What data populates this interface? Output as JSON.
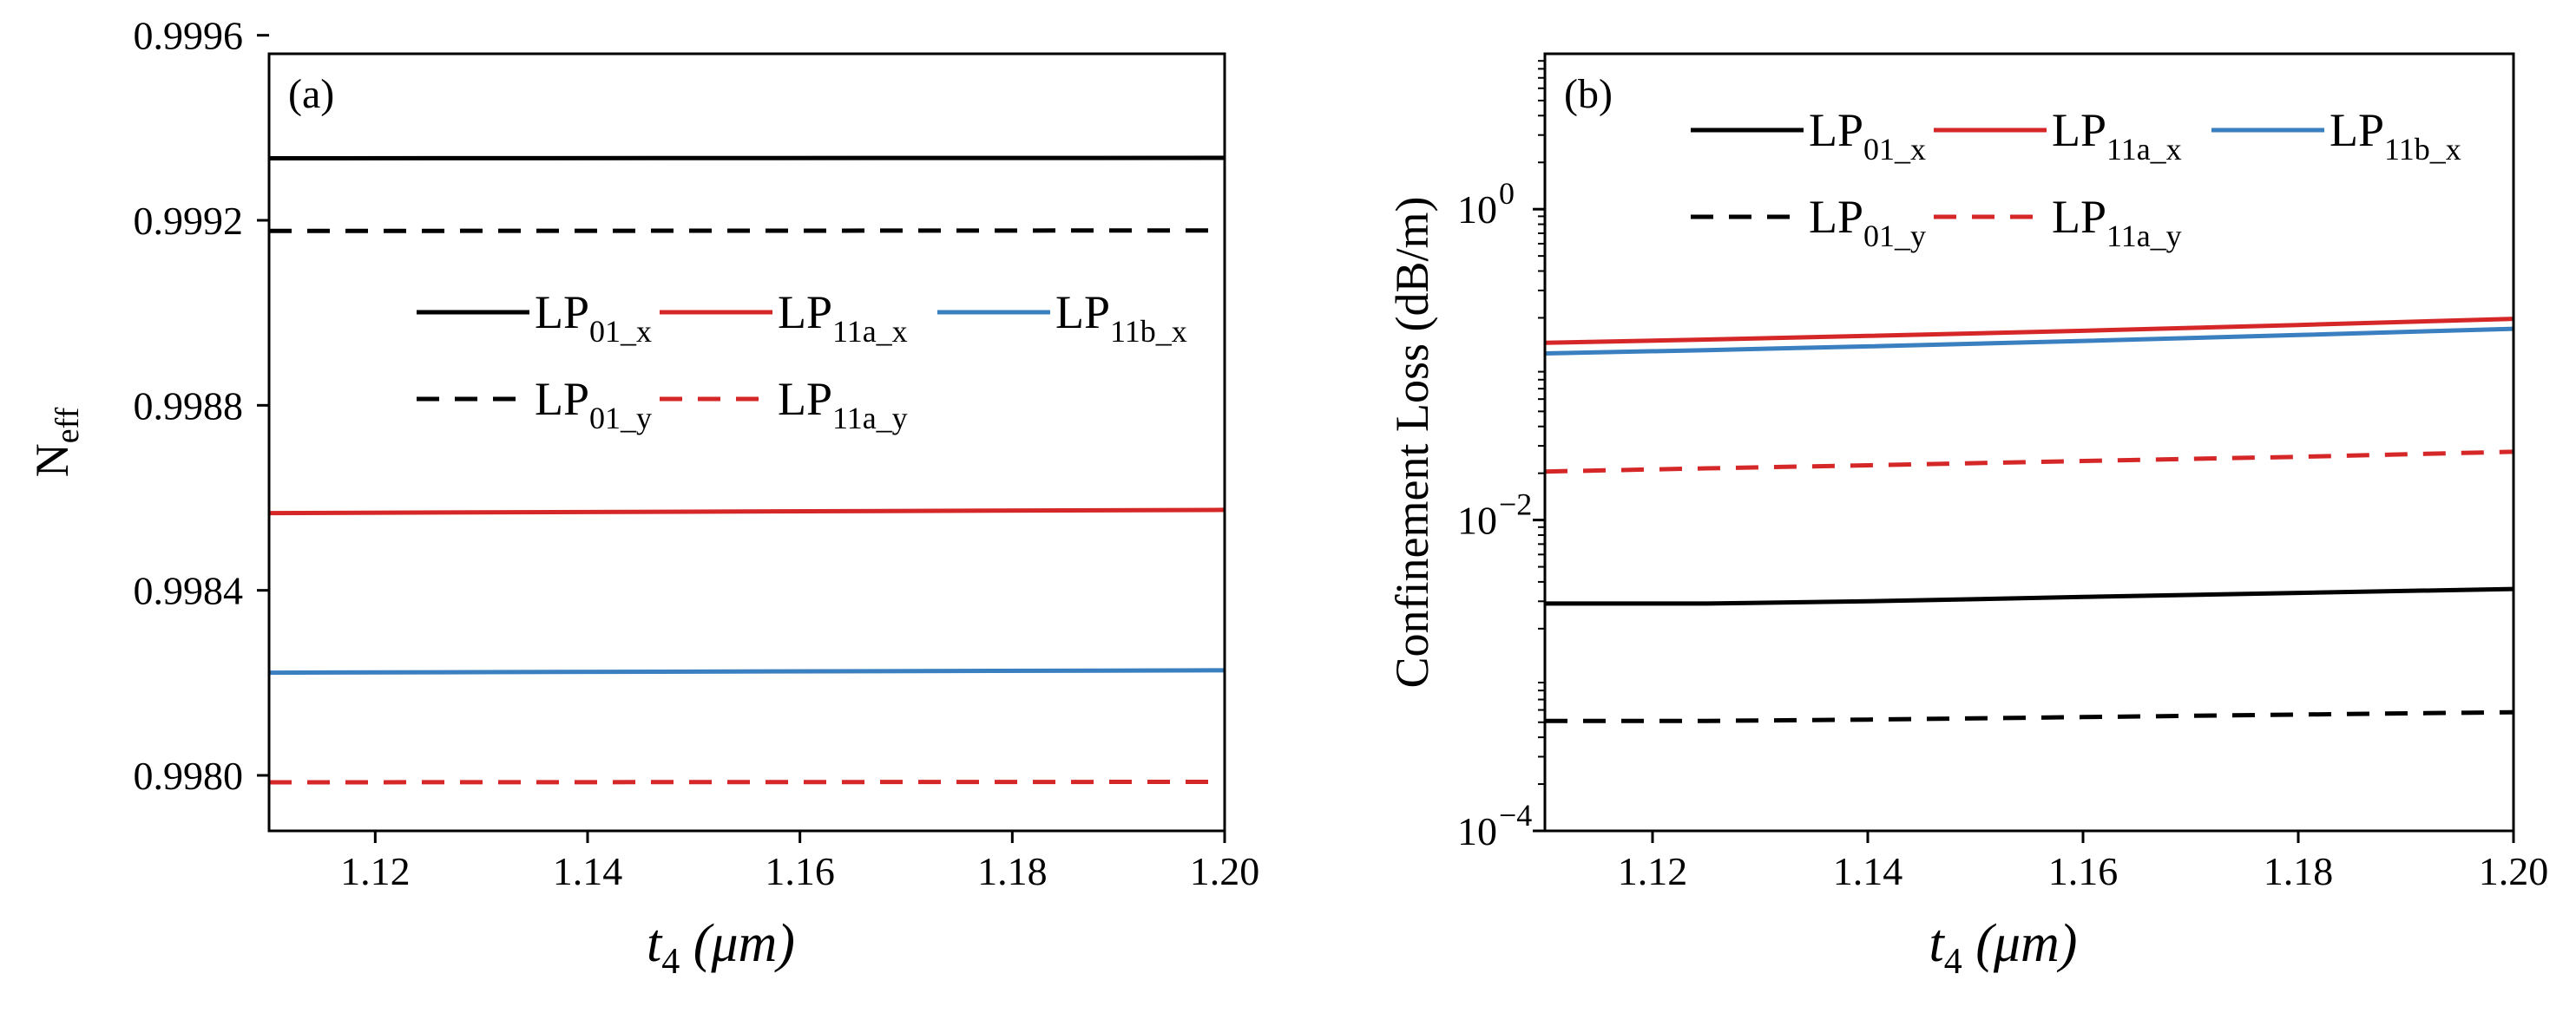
{
  "chart_data": [
    {
      "type": "line",
      "panel_label": "(a)",
      "xlabel": {
        "var": "t",
        "sub": "4",
        "unit": "(μm)"
      },
      "ylabel": {
        "base": "N",
        "sub": "eff"
      },
      "xlim": [
        1.11,
        1.2
      ],
      "ylim": [
        0.99788,
        0.99956
      ],
      "yscale": "linear",
      "xticks": [
        1.12,
        1.14,
        1.16,
        1.18,
        1.2
      ],
      "xtick_labels": [
        "1.12",
        "1.14",
        "1.16",
        "1.18",
        "1.20"
      ],
      "yticks": [
        0.998,
        0.9984,
        0.9988,
        0.9992,
        0.9996
      ],
      "ytick_labels": [
        "0.9980",
        "0.9984",
        "0.9988",
        "0.9992",
        "0.9996"
      ],
      "x": [
        1.11,
        1.2
      ],
      "series": [
        {
          "name": "LP01_x",
          "base": "LP",
          "sub": "01_x",
          "color": "#000000",
          "dash": "solid",
          "values": [
            0.999334,
            0.999335
          ]
        },
        {
          "name": "LP11a_x",
          "base": "LP",
          "sub": "11a_x",
          "color": "#d62728",
          "dash": "solid",
          "values": [
            0.998567,
            0.998574
          ]
        },
        {
          "name": "LP11b_x",
          "base": "LP",
          "sub": "11b_x",
          "color": "#3a7fbf",
          "dash": "solid",
          "values": [
            0.998222,
            0.998227
          ]
        },
        {
          "name": "LP01_y",
          "base": "LP",
          "sub": "01_y",
          "color": "#000000",
          "dash": "dashed",
          "values": [
            0.999177,
            0.999178
          ]
        },
        {
          "name": "LP11a_y",
          "base": "LP",
          "sub": "11a_y",
          "color": "#d62728",
          "dash": "dashed",
          "values": [
            0.997985,
            0.997986
          ]
        }
      ],
      "legend": {
        "placement": "center-right",
        "rows": [
          [
            "LP01_x",
            "LP11a_x",
            "LP11b_x"
          ],
          [
            "LP01_y",
            "LP11a_y"
          ]
        ]
      }
    },
    {
      "type": "line",
      "panel_label": "(b)",
      "xlabel": {
        "var": "t",
        "sub": "4",
        "unit": "(μm)"
      },
      "ylabel": {
        "text": "Confinement Loss (dB/m)"
      },
      "xlim": [
        1.11,
        1.2
      ],
      "ylim": [
        0.0001,
        10
      ],
      "yscale": "log",
      "xticks": [
        1.12,
        1.14,
        1.16,
        1.18,
        1.2
      ],
      "xtick_labels": [
        "1.12",
        "1.14",
        "1.16",
        "1.18",
        "1.20"
      ],
      "yticks": [
        0.0001,
        0.01,
        1
      ],
      "ytick_labels": [
        {
          "base": "10",
          "exp": "−4"
        },
        {
          "base": "10",
          "exp": "−2"
        },
        {
          "base": "10",
          "exp": "0"
        }
      ],
      "x": [
        1.11,
        1.125,
        1.14,
        1.16,
        1.18,
        1.2
      ],
      "series": [
        {
          "name": "LP01_x",
          "base": "LP",
          "sub": "01_x",
          "color": "#000000",
          "dash": "solid",
          "values": [
            0.0029,
            0.0029,
            0.003,
            0.0032,
            0.0034,
            0.0036
          ]
        },
        {
          "name": "LP11a_x",
          "base": "LP",
          "sub": "11a_x",
          "color": "#d62728",
          "dash": "solid",
          "values": [
            0.138,
            0.145,
            0.153,
            0.165,
            0.18,
            0.197
          ]
        },
        {
          "name": "LP11b_x",
          "base": "LP",
          "sub": "11b_x",
          "color": "#3a7fbf",
          "dash": "solid",
          "values": [
            0.118,
            0.124,
            0.131,
            0.142,
            0.155,
            0.17
          ]
        },
        {
          "name": "LP01_y",
          "base": "LP",
          "sub": "01_y",
          "color": "#000000",
          "dash": "dashed",
          "values": [
            0.00051,
            0.00051,
            0.00052,
            0.00054,
            0.00056,
            0.00058
          ]
        },
        {
          "name": "LP11a_y",
          "base": "LP",
          "sub": "11a_y",
          "color": "#d62728",
          "dash": "dashed",
          "values": [
            0.0205,
            0.0215,
            0.0225,
            0.024,
            0.0255,
            0.0275
          ]
        }
      ],
      "legend": {
        "placement": "top-left",
        "rows": [
          [
            "LP01_x",
            "LP11a_x",
            "LP11b_x"
          ],
          [
            "LP01_y",
            "LP11a_y"
          ]
        ]
      }
    }
  ]
}
